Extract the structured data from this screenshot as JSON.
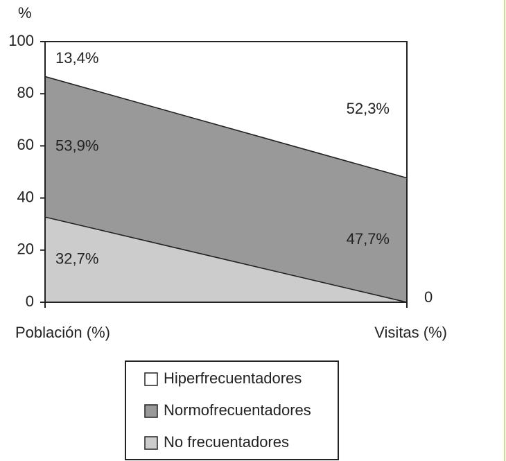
{
  "chart_data": {
    "type": "stacked_area",
    "y_label": "%",
    "categories": [
      "Población (%)",
      "Visitas (%)"
    ],
    "ylim": [
      0,
      100
    ],
    "yticks": [
      0,
      20,
      40,
      60,
      80,
      100
    ],
    "series": [
      {
        "name": "No frecuentadores",
        "color": "#cccccc",
        "values": [
          32.7,
          0
        ],
        "value_labels": [
          "32,7%",
          "0"
        ]
      },
      {
        "name": "Normofrecuentadores",
        "color": "#999999",
        "values": [
          53.9,
          47.7
        ],
        "value_labels": [
          "53,9%",
          "47,7%"
        ]
      },
      {
        "name": "Hiperfrecuentadores",
        "color": "#ffffff",
        "values": [
          13.4,
          52.3
        ],
        "value_labels": [
          "13,4%",
          "52,3%"
        ]
      }
    ]
  }
}
